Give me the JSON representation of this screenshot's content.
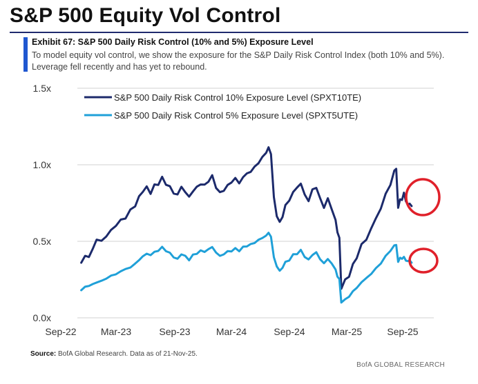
{
  "header": {
    "title": "S&P 500 Equity Vol Control",
    "exhibit_title": "Exhibit 67: S&P 500 Daily Risk Control (10% and 5%) Exposure Level",
    "description": "To model equity vol control, we show the exposure for the S&P Daily Risk Control Index (both 10% and 5%).  Leverage fell recently and has yet to rebound."
  },
  "footer": {
    "source_label": "Source:",
    "source_text": " BofA Global Research. Data as of 21-Nov-25.",
    "brand": "BofA GLOBAL RESEARCH"
  },
  "colors": {
    "series_10": "#1c2a6b",
    "series_5": "#1fa0d8",
    "grid": "#d0d0d0",
    "highlight": "#e0202a"
  },
  "chart_data": {
    "type": "line",
    "title": "Exhibit 67: S&P 500 Daily Risk Control (10% and 5%) Exposure Level",
    "xlabel": "",
    "ylabel": "",
    "ylim": [
      0,
      1.5
    ],
    "yticks": [
      0,
      0.5,
      1.0,
      1.5
    ],
    "ytick_labels": [
      "0.0x",
      "0.5x",
      "1.0x",
      "1.5x"
    ],
    "x_range": [
      "2022-09",
      "2025-12"
    ],
    "xtick_labels": [
      "Sep-22",
      "Mar-23",
      "Sep-23",
      "Mar-24",
      "Sep-24",
      "Mar-25",
      "Sep-25"
    ],
    "grid": true,
    "legend_position": "top-left",
    "highlights": [
      "circle around latest values of both series (Nov-25)"
    ],
    "series": [
      {
        "name": "S&P 500 Daily Risk Control 10% Exposure Level (SPXT10TE)",
        "points": [
          [
            0.4,
            0.36
          ],
          [
            0.8,
            0.41
          ],
          [
            1.2,
            0.39
          ],
          [
            1.6,
            0.46
          ],
          [
            2.0,
            0.5
          ],
          [
            2.5,
            0.51
          ],
          [
            3.0,
            0.53
          ],
          [
            3.5,
            0.57
          ],
          [
            4.0,
            0.61
          ],
          [
            4.5,
            0.63
          ],
          [
            5.0,
            0.66
          ],
          [
            5.5,
            0.7
          ],
          [
            6.0,
            0.73
          ],
          [
            6.4,
            0.79
          ],
          [
            6.8,
            0.83
          ],
          [
            7.2,
            0.85
          ],
          [
            7.6,
            0.82
          ],
          [
            8.0,
            0.86
          ],
          [
            8.4,
            0.88
          ],
          [
            8.8,
            0.91
          ],
          [
            9.2,
            0.88
          ],
          [
            9.6,
            0.85
          ],
          [
            10.0,
            0.82
          ],
          [
            10.4,
            0.8
          ],
          [
            10.8,
            0.86
          ],
          [
            11.2,
            0.82
          ],
          [
            11.6,
            0.79
          ],
          [
            12.0,
            0.83
          ],
          [
            12.4,
            0.85
          ],
          [
            12.8,
            0.88
          ],
          [
            13.2,
            0.86
          ],
          [
            13.6,
            0.9
          ],
          [
            14.0,
            0.92
          ],
          [
            14.4,
            0.86
          ],
          [
            14.8,
            0.81
          ],
          [
            15.2,
            0.84
          ],
          [
            15.6,
            0.86
          ],
          [
            16.0,
            0.89
          ],
          [
            16.4,
            0.91
          ],
          [
            16.8,
            0.88
          ],
          [
            17.2,
            0.92
          ],
          [
            17.6,
            0.94
          ],
          [
            18.0,
            0.96
          ],
          [
            18.4,
            0.98
          ],
          [
            18.8,
            1.02
          ],
          [
            19.2,
            1.04
          ],
          [
            19.6,
            1.09
          ],
          [
            19.85,
            1.11
          ],
          [
            20.1,
            1.06
          ],
          [
            20.4,
            0.8
          ],
          [
            20.7,
            0.66
          ],
          [
            21.0,
            0.62
          ],
          [
            21.3,
            0.67
          ],
          [
            21.6,
            0.73
          ],
          [
            22.0,
            0.77
          ],
          [
            22.4,
            0.82
          ],
          [
            22.8,
            0.85
          ],
          [
            23.2,
            0.88
          ],
          [
            23.6,
            0.8
          ],
          [
            24.0,
            0.77
          ],
          [
            24.4,
            0.83
          ],
          [
            24.8,
            0.86
          ],
          [
            25.2,
            0.77
          ],
          [
            25.6,
            0.73
          ],
          [
            26.0,
            0.77
          ],
          [
            26.4,
            0.72
          ],
          [
            26.8,
            0.63
          ],
          [
            27.0,
            0.55
          ],
          [
            27.2,
            0.53
          ],
          [
            27.4,
            0.2
          ],
          [
            27.8,
            0.24
          ],
          [
            28.2,
            0.28
          ],
          [
            28.6,
            0.34
          ],
          [
            29.0,
            0.4
          ],
          [
            29.5,
            0.47
          ],
          [
            30.0,
            0.52
          ],
          [
            30.5,
            0.58
          ],
          [
            31.0,
            0.65
          ],
          [
            31.5,
            0.72
          ],
          [
            32.0,
            0.8
          ],
          [
            32.5,
            0.88
          ],
          [
            32.9,
            0.95
          ],
          [
            33.1,
            0.97
          ],
          [
            33.3,
            0.73
          ],
          [
            33.5,
            0.78
          ],
          [
            33.7,
            0.76
          ],
          [
            33.9,
            0.81
          ],
          [
            34.1,
            0.77
          ],
          [
            34.3,
            0.75
          ],
          [
            34.5,
            0.74
          ],
          [
            34.7,
            0.73
          ]
        ]
      },
      {
        "name": "S&P 500 Daily Risk Control 5% Exposure Level (SPXT5UTE)",
        "points": [
          [
            0.4,
            0.18
          ],
          [
            0.8,
            0.2
          ],
          [
            1.2,
            0.21
          ],
          [
            1.6,
            0.22
          ],
          [
            2.0,
            0.23
          ],
          [
            2.5,
            0.24
          ],
          [
            3.0,
            0.26
          ],
          [
            3.5,
            0.27
          ],
          [
            4.0,
            0.29
          ],
          [
            4.5,
            0.3
          ],
          [
            5.0,
            0.32
          ],
          [
            5.5,
            0.33
          ],
          [
            6.0,
            0.35
          ],
          [
            6.4,
            0.38
          ],
          [
            6.8,
            0.4
          ],
          [
            7.2,
            0.42
          ],
          [
            7.6,
            0.41
          ],
          [
            8.0,
            0.43
          ],
          [
            8.4,
            0.44
          ],
          [
            8.8,
            0.46
          ],
          [
            9.2,
            0.44
          ],
          [
            9.6,
            0.42
          ],
          [
            10.0,
            0.4
          ],
          [
            10.4,
            0.38
          ],
          [
            10.8,
            0.42
          ],
          [
            11.2,
            0.4
          ],
          [
            11.6,
            0.38
          ],
          [
            12.0,
            0.41
          ],
          [
            12.4,
            0.42
          ],
          [
            12.8,
            0.44
          ],
          [
            13.2,
            0.43
          ],
          [
            13.6,
            0.45
          ],
          [
            14.0,
            0.46
          ],
          [
            14.4,
            0.43
          ],
          [
            14.8,
            0.4
          ],
          [
            15.2,
            0.42
          ],
          [
            15.6,
            0.43
          ],
          [
            16.0,
            0.44
          ],
          [
            16.4,
            0.45
          ],
          [
            16.8,
            0.44
          ],
          [
            17.2,
            0.46
          ],
          [
            17.6,
            0.47
          ],
          [
            18.0,
            0.48
          ],
          [
            18.4,
            0.49
          ],
          [
            18.8,
            0.51
          ],
          [
            19.2,
            0.52
          ],
          [
            19.6,
            0.54
          ],
          [
            19.85,
            0.55
          ],
          [
            20.1,
            0.53
          ],
          [
            20.4,
            0.4
          ],
          [
            20.7,
            0.33
          ],
          [
            21.0,
            0.31
          ],
          [
            21.3,
            0.33
          ],
          [
            21.6,
            0.36
          ],
          [
            22.0,
            0.38
          ],
          [
            22.4,
            0.41
          ],
          [
            22.8,
            0.42
          ],
          [
            23.2,
            0.44
          ],
          [
            23.6,
            0.4
          ],
          [
            24.0,
            0.38
          ],
          [
            24.4,
            0.41
          ],
          [
            24.8,
            0.43
          ],
          [
            25.2,
            0.38
          ],
          [
            25.6,
            0.36
          ],
          [
            26.0,
            0.38
          ],
          [
            26.4,
            0.36
          ],
          [
            26.8,
            0.31
          ],
          [
            27.0,
            0.27
          ],
          [
            27.2,
            0.26
          ],
          [
            27.4,
            0.1
          ],
          [
            27.8,
            0.12
          ],
          [
            28.2,
            0.14
          ],
          [
            28.6,
            0.17
          ],
          [
            29.0,
            0.2
          ],
          [
            29.5,
            0.23
          ],
          [
            30.0,
            0.26
          ],
          [
            30.5,
            0.29
          ],
          [
            31.0,
            0.32
          ],
          [
            31.5,
            0.36
          ],
          [
            32.0,
            0.4
          ],
          [
            32.5,
            0.44
          ],
          [
            32.9,
            0.47
          ],
          [
            33.1,
            0.48
          ],
          [
            33.3,
            0.37
          ],
          [
            33.5,
            0.39
          ],
          [
            33.7,
            0.38
          ],
          [
            33.9,
            0.4
          ],
          [
            34.1,
            0.38
          ],
          [
            34.3,
            0.37
          ],
          [
            34.5,
            0.37
          ],
          [
            34.7,
            0.36
          ]
        ]
      }
    ]
  }
}
